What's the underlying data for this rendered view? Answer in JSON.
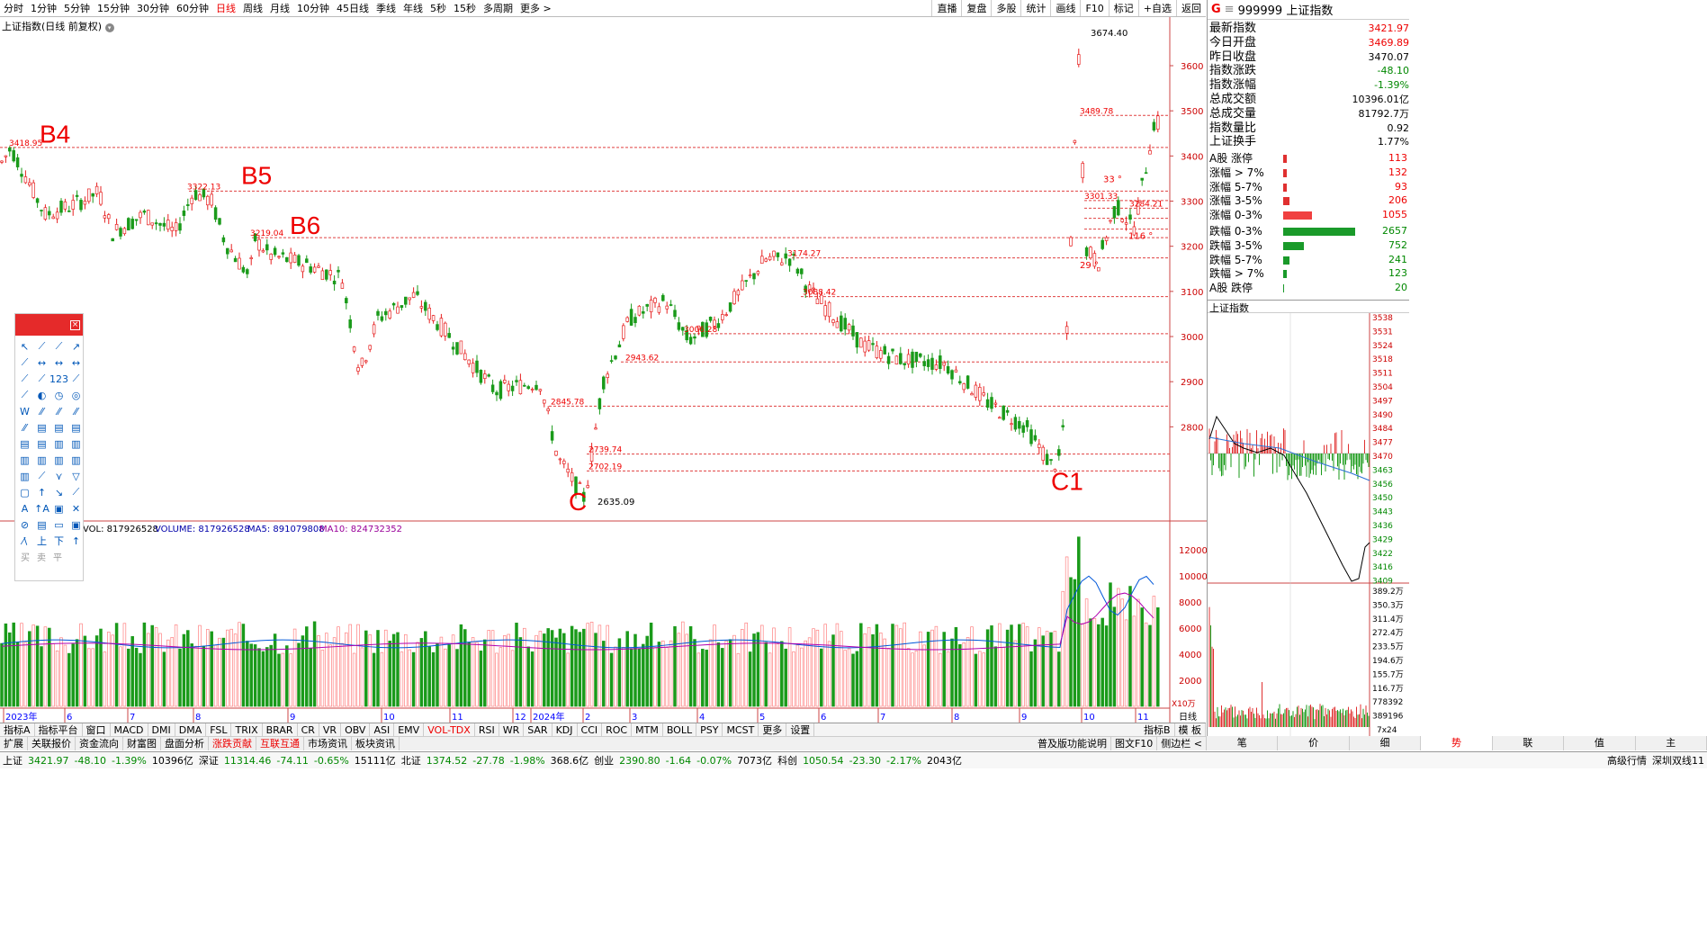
{
  "top_periods": [
    "分时",
    "1分钟",
    "5分钟",
    "15分钟",
    "30分钟",
    "60分钟",
    "日线",
    "周线",
    "月线",
    "10分钟",
    "45日线",
    "季线",
    "年线",
    "5秒",
    "15秒",
    "多周期",
    "更多 >"
  ],
  "top_active": "日线",
  "top_right": [
    "直播",
    "复盘",
    "多股",
    "统计",
    "画线",
    "F10",
    "标记",
    "+自选",
    "返回"
  ],
  "chart_title": "上证指数(日线 前复权)",
  "price_ticks": [
    "3600",
    "3500",
    "3400",
    "3300",
    "3200",
    "3100",
    "3000",
    "2900",
    "2800"
  ],
  "annotations": {
    "b4": "B4",
    "b5": "B5",
    "b6": "B6",
    "c": "C",
    "c1": "C1",
    "p3418": "3418.95",
    "p3322": "3322.13",
    "p3219": "3219.04",
    "p3174": "3174.27",
    "p3674": "3674.40",
    "p3489": "3489.78",
    "p3301": "3301.33",
    "p3088": "3088.42",
    "p3006": "3006.28",
    "p2943": "2943.62",
    "p2845": "2845.78",
    "p2739": "2739.74",
    "p2702": "2702.19",
    "p2635": "2635.09",
    "p3284": "3284.21",
    "a33": "33 °",
    "a116": "116 °",
    "a29": "29 °"
  },
  "months": [
    "2023年",
    "6",
    "7",
    "8",
    "9",
    "10",
    "11",
    "12",
    "2024年",
    "2",
    "3",
    "4",
    "5",
    "6",
    "7",
    "8",
    "9",
    "10",
    "11"
  ],
  "vol_legend": {
    "vol": "VOL: 817926528",
    "volume": "VOLUME: 817926528",
    "ma5": "MA5: 891079808",
    "ma10": "MA10: 824732352"
  },
  "vol_ticks": [
    "12000",
    "10000",
    "8000",
    "6000",
    "4000",
    "2000"
  ],
  "vol_unit": "X10万",
  "day_label": "日线",
  "right": {
    "g": "G",
    "code": "999999 上证指数",
    "stats": [
      {
        "label": "最新指数",
        "value": "3421.97",
        "color": "red"
      },
      {
        "label": "今日开盘",
        "value": "3469.89",
        "color": "red"
      },
      {
        "label": "昨日收盘",
        "value": "3470.07",
        "color": "black"
      },
      {
        "label": "指数涨跌",
        "value": "-48.10",
        "color": "green"
      },
      {
        "label": "指数涨幅",
        "value": "-1.39%",
        "color": "green"
      },
      {
        "label": "总成交额",
        "value": "10396.01亿",
        "color": "black"
      },
      {
        "label": "总成交量",
        "value": "81792.7万",
        "color": "black"
      },
      {
        "label": "指数量比",
        "value": "0.92",
        "color": "black"
      },
      {
        "label": "上证换手",
        "value": "1.77%",
        "color": "black"
      }
    ],
    "limits": [
      {
        "label": "A股 涨停",
        "count": "113",
        "w": 4,
        "color": "#e03030"
      },
      {
        "label": "涨幅 > 7%",
        "count": "132",
        "w": 4,
        "color": "#e03030"
      },
      {
        "label": "涨幅 5-7%",
        "count": "93",
        "w": 4,
        "color": "#e03030"
      },
      {
        "label": "涨幅 3-5%",
        "count": "206",
        "w": 7,
        "color": "#e03030"
      },
      {
        "label": "涨幅 0-3%",
        "count": "1055",
        "w": 32,
        "color": "#f04040"
      },
      {
        "label": "跌幅 0-3%",
        "count": "2657",
        "w": 80,
        "color": "#1a9a2a"
      },
      {
        "label": "跌幅 3-5%",
        "count": "752",
        "w": 23,
        "color": "#1a9a2a"
      },
      {
        "label": "跌幅 5-7%",
        "count": "241",
        "w": 7,
        "color": "#1a9a2a"
      },
      {
        "label": "跌幅 > 7%",
        "count": "123",
        "w": 4,
        "color": "#1a9a2a"
      },
      {
        "label": "A股 跌停",
        "count": "20",
        "w": 1,
        "color": "#1a9a2a"
      }
    ],
    "mini_title": "上证指数",
    "mini_price_ticks": [
      "3538",
      "3531",
      "3524",
      "3518",
      "3511",
      "3504",
      "3497",
      "3490",
      "3484",
      "3477",
      "3470",
      "3463",
      "3456",
      "3450",
      "3443",
      "3436",
      "3429",
      "3422",
      "3416",
      "3409"
    ],
    "mini_vol_ticks": [
      "389.2万",
      "350.3万",
      "311.4万",
      "272.4万",
      "233.5万",
      "194.6万",
      "155.7万",
      "116.7万",
      "778392",
      "389196"
    ],
    "mini_corner": "7x24"
  },
  "bottom_indicators": [
    "指标A",
    "指标平台",
    "窗口",
    "MACD",
    "DMI",
    "DMA",
    "FSL",
    "TRIX",
    "BRAR",
    "CR",
    "VR",
    "OBV",
    "ASI",
    "EMV",
    "VOL-TDX",
    "RSI",
    "WR",
    "SAR",
    "KDJ",
    "CCI",
    "ROC",
    "MTM",
    "BOLL",
    "PSY",
    "MCST",
    "更多",
    "设置"
  ],
  "bottom_active": "VOL-TDX",
  "bottom_right_ind": [
    "指标B",
    "模 板"
  ],
  "bottom_tabs": [
    "扩展",
    "关联报价",
    "资金流向",
    "财富图",
    "盘面分析",
    "涨跌贡献",
    "互联互通",
    "市场资讯",
    "板块资讯"
  ],
  "bottom_tabs_red": [
    "涨跌贡献",
    "互联互通"
  ],
  "bottom_tabs_right": [
    "普及版功能说明",
    "图文F10",
    "侧边栏 <"
  ],
  "right_tabs": [
    "笔",
    "价",
    "细",
    "势",
    "联",
    "值",
    "主"
  ],
  "right_tab_active": "势",
  "toolbox_text": [
    "买",
    "卖",
    "平"
  ],
  "status": [
    {
      "t": "上证",
      "c": "black"
    },
    {
      "t": "3421.97",
      "c": "green"
    },
    {
      "t": "-48.10",
      "c": "green"
    },
    {
      "t": "-1.39%",
      "c": "green"
    },
    {
      "t": "10396亿",
      "c": "black"
    },
    {
      "t": "深证",
      "c": "black"
    },
    {
      "t": "11314.46",
      "c": "green"
    },
    {
      "t": "-74.11",
      "c": "green"
    },
    {
      "t": "-0.65%",
      "c": "green"
    },
    {
      "t": "15111亿",
      "c": "black"
    },
    {
      "t": "北证",
      "c": "black"
    },
    {
      "t": "1374.52",
      "c": "green"
    },
    {
      "t": "-27.78",
      "c": "green"
    },
    {
      "t": "-1.98%",
      "c": "green"
    },
    {
      "t": "368.6亿",
      "c": "black"
    },
    {
      "t": "创业",
      "c": "black"
    },
    {
      "t": "2390.80",
      "c": "green"
    },
    {
      "t": "-1.64",
      "c": "green"
    },
    {
      "t": "-0.07%",
      "c": "green"
    },
    {
      "t": "7073亿",
      "c": "black"
    },
    {
      "t": "科创",
      "c": "black"
    },
    {
      "t": "1050.54",
      "c": "green"
    },
    {
      "t": "-23.30",
      "c": "green"
    },
    {
      "t": "-2.17%",
      "c": "green"
    },
    {
      "t": "2043亿",
      "c": "black"
    }
  ],
  "status_right": [
    "高级行情",
    "深圳双线11"
  ]
}
